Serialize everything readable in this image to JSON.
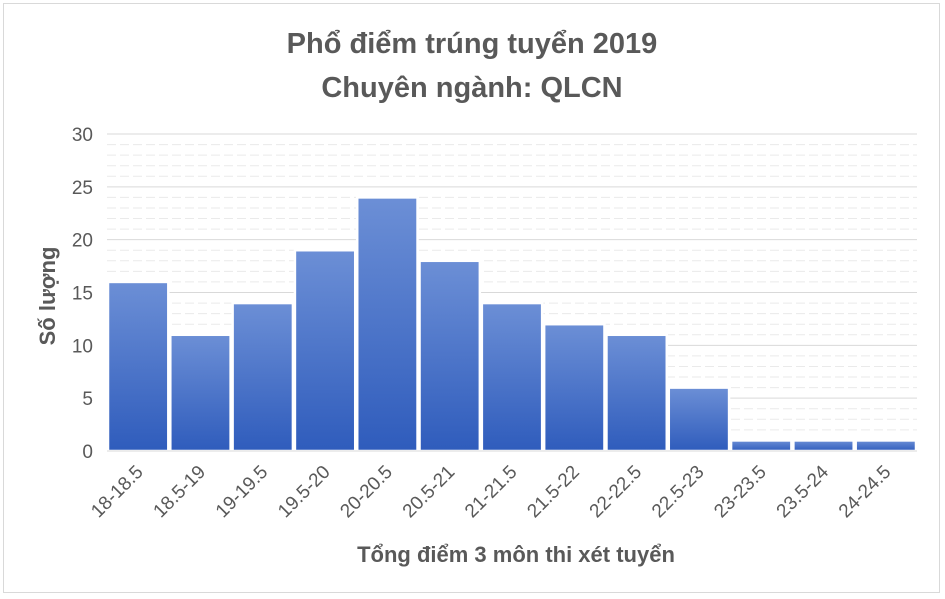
{
  "chart_data": {
    "type": "bar",
    "title": "Phổ điểm trúng tuyển 2019",
    "subtitle": "Chuyên ngành: QLCN",
    "xlabel": "Tổng điểm 3 môn thi xét tuyển",
    "ylabel": "Số lượng",
    "categories": [
      "18-18.5",
      "18.5-19",
      "19-19.5",
      "19.5-20",
      "20-20.5",
      "20.5-21",
      "21-21.5",
      "21.5-22",
      "22-22.5",
      "22.5-23",
      "23-23.5",
      "23.5-24",
      "24-24.5"
    ],
    "values": [
      16,
      11,
      14,
      19,
      24,
      18,
      14,
      12,
      11,
      6,
      1,
      1,
      1
    ],
    "ylim": [
      0,
      30
    ],
    "yticks": [
      0,
      5,
      10,
      15,
      20,
      25,
      30
    ],
    "grid": true,
    "legend": "none",
    "colors": {
      "bar_top": "#6c8fd6",
      "bar_bottom": "#2f5cbc",
      "bar_border": "#ffffff",
      "text": "#595959",
      "grid_major": "#d9d9d9",
      "grid_minor": "#eaeaea"
    }
  }
}
